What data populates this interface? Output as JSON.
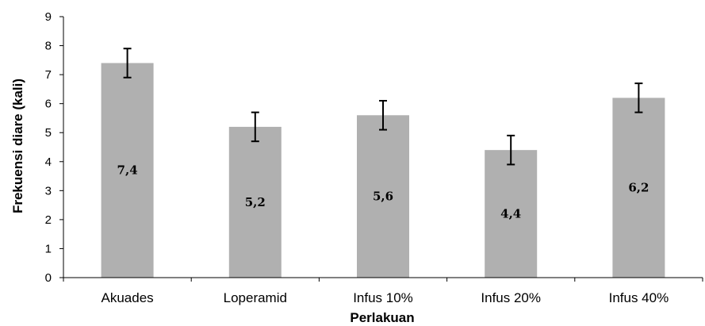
{
  "chart_data": {
    "type": "bar",
    "title": "",
    "xlabel": "Perlakuan",
    "ylabel": "Frekuensi diare (kali)",
    "categories": [
      "Akuades",
      "Loperamid",
      "Infus 10%",
      "Infus 20%",
      "Infus 40%"
    ],
    "values": [
      7.4,
      5.2,
      5.6,
      4.4,
      6.2
    ],
    "value_labels": [
      "7,4",
      "5,2",
      "5,6",
      "4,4",
      "6,2"
    ],
    "error": [
      0.5,
      0.5,
      0.5,
      0.5,
      0.5
    ],
    "ylim": [
      0,
      9
    ],
    "yticks": [
      0,
      1,
      2,
      3,
      4,
      5,
      6,
      7,
      8,
      9
    ],
    "grid": false,
    "legend": "none",
    "colors": {
      "bar": "#b0b0b0",
      "axis": "#000000",
      "error_bar": "#000000"
    }
  }
}
